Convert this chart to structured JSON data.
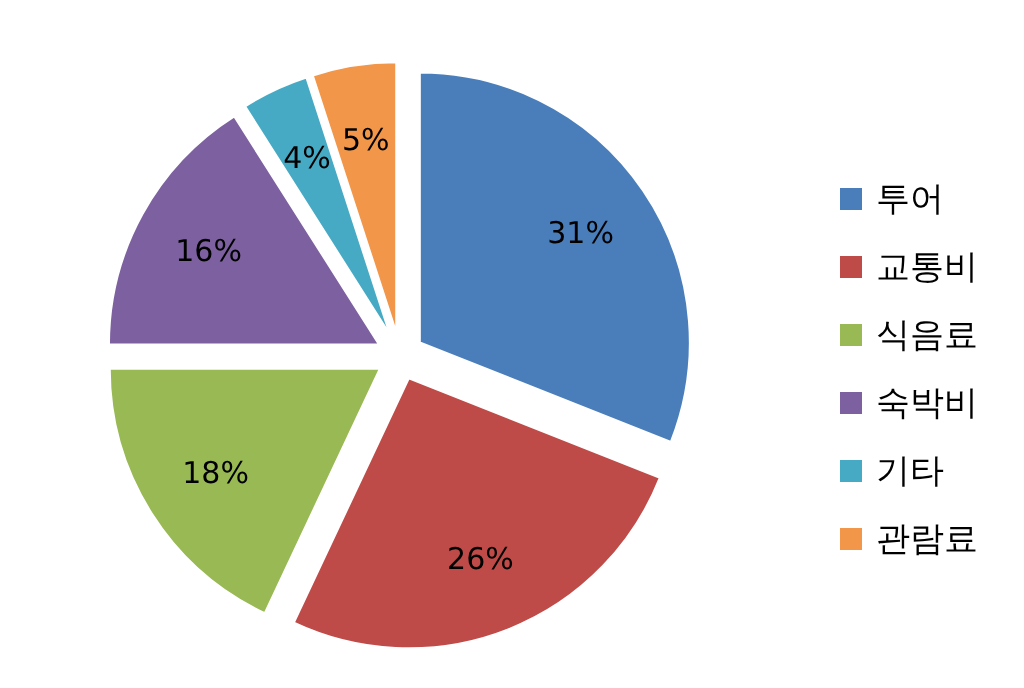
{
  "chart_data": {
    "type": "pie",
    "categories": [
      "투어",
      "교통비",
      "식음료",
      "숙박비",
      "기타",
      "관람료"
    ],
    "values": [
      31,
      26,
      18,
      16,
      4,
      5
    ],
    "colors": [
      "#4a7ebb",
      "#be4b48",
      "#98b954",
      "#7d60a0",
      "#46aac5",
      "#f2964a"
    ],
    "value_labels": [
      "31%",
      "26%",
      "18%",
      "16%",
      "4%",
      "5%"
    ],
    "legend": "right"
  }
}
